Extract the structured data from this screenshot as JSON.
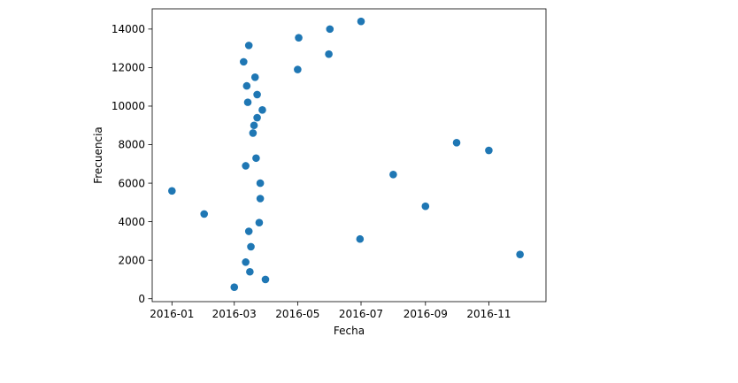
{
  "chart_data": {
    "type": "scatter",
    "title": "",
    "xlabel": "Fecha",
    "ylabel": "Frecuencia",
    "x_axis_type": "date",
    "xlim": [
      "2015-12-13",
      "2016-12-26"
    ],
    "ylim": [
      -150,
      15050
    ],
    "x_ticks": [
      "2016-01-01",
      "2016-03-01",
      "2016-05-01",
      "2016-07-01",
      "2016-09-01",
      "2016-11-01"
    ],
    "x_tick_labels": [
      "2016-01",
      "2016-03",
      "2016-05",
      "2016-07",
      "2016-09",
      "2016-11"
    ],
    "y_ticks": [
      0,
      2000,
      4000,
      6000,
      8000,
      10000,
      12000,
      14000
    ],
    "y_tick_labels": [
      "0",
      "2000",
      "4000",
      "6000",
      "8000",
      "10000",
      "12000",
      "14000"
    ],
    "grid": false,
    "legend": "none",
    "marker_color": "#1f77b4",
    "series": [
      {
        "points": [
          {
            "x": "2016-01-01",
            "y": 5600
          },
          {
            "x": "2016-02-01",
            "y": 4400
          },
          {
            "x": "2016-03-01",
            "y": 600
          },
          {
            "x": "2016-03-10",
            "y": 12300
          },
          {
            "x": "2016-03-12",
            "y": 6900
          },
          {
            "x": "2016-03-12",
            "y": 1900
          },
          {
            "x": "2016-03-13",
            "y": 11050
          },
          {
            "x": "2016-03-14",
            "y": 10200
          },
          {
            "x": "2016-03-15",
            "y": 13150
          },
          {
            "x": "2016-03-15",
            "y": 3500
          },
          {
            "x": "2016-03-16",
            "y": 1400
          },
          {
            "x": "2016-03-17",
            "y": 2700
          },
          {
            "x": "2016-03-19",
            "y": 8600
          },
          {
            "x": "2016-03-20",
            "y": 9000
          },
          {
            "x": "2016-03-21",
            "y": 11500
          },
          {
            "x": "2016-03-22",
            "y": 7300
          },
          {
            "x": "2016-03-23",
            "y": 10600
          },
          {
            "x": "2016-03-23",
            "y": 9400
          },
          {
            "x": "2016-03-25",
            "y": 3950
          },
          {
            "x": "2016-03-26",
            "y": 6000
          },
          {
            "x": "2016-03-26",
            "y": 5200
          },
          {
            "x": "2016-03-28",
            "y": 9800
          },
          {
            "x": "2016-03-31",
            "y": 1000
          },
          {
            "x": "2016-05-01",
            "y": 11900
          },
          {
            "x": "2016-05-02",
            "y": 13550
          },
          {
            "x": "2016-05-31",
            "y": 12700
          },
          {
            "x": "2016-06-01",
            "y": 14000
          },
          {
            "x": "2016-06-30",
            "y": 3100
          },
          {
            "x": "2016-07-01",
            "y": 14400
          },
          {
            "x": "2016-08-01",
            "y": 6450
          },
          {
            "x": "2016-09-01",
            "y": 4800
          },
          {
            "x": "2016-10-01",
            "y": 8100
          },
          {
            "x": "2016-11-01",
            "y": 7700
          },
          {
            "x": "2016-12-01",
            "y": 2300
          }
        ]
      }
    ]
  }
}
